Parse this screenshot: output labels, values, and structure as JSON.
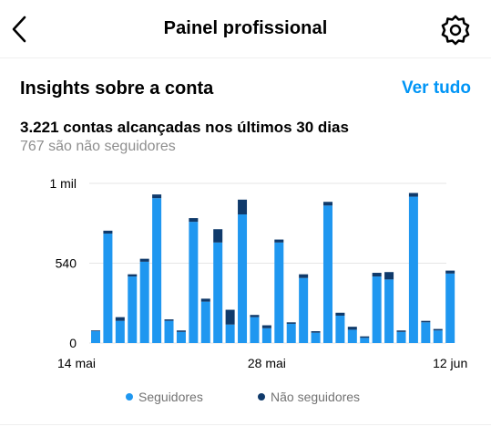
{
  "header": {
    "title": "Painel profissional",
    "back_icon": "chevron-left-icon",
    "settings_icon": "gear-icon"
  },
  "insights": {
    "title": "Insights sobre a conta",
    "see_all": "Ver tudo",
    "reach_text": "3.221 contas alcançadas nos últimos 30 dias",
    "non_followers_text": "767 são não seguidores"
  },
  "chart_data": {
    "type": "bar",
    "stacked": true,
    "y_ticks": [
      {
        "value": 0,
        "label": "0"
      },
      {
        "value": 540,
        "label": "540"
      },
      {
        "value": 1080,
        "label": "1 mil"
      }
    ],
    "ylim": [
      0,
      1080
    ],
    "x_ticks": [
      {
        "index": 0,
        "label": "14 mai"
      },
      {
        "index": 14,
        "label": "28 mai"
      },
      {
        "index": 29,
        "label": "12 jun"
      }
    ],
    "grid": true,
    "colors": {
      "followers": "#1f97f0",
      "non_followers": "#0f3a6b"
    },
    "series": [
      {
        "name": "Seguidores",
        "values": [
          80,
          740,
          150,
          450,
          550,
          980,
          150,
          75,
          820,
          280,
          680,
          125,
          870,
          175,
          100,
          680,
          130,
          440,
          70,
          930,
          185,
          90,
          35,
          450,
          430,
          75,
          990,
          140,
          85,
          470
        ]
      },
      {
        "name": "Não seguidores",
        "values": [
          5,
          20,
          25,
          15,
          20,
          25,
          10,
          10,
          25,
          20,
          90,
          100,
          100,
          15,
          20,
          20,
          10,
          25,
          10,
          25,
          20,
          20,
          10,
          25,
          50,
          10,
          25,
          10,
          10,
          20
        ]
      }
    ]
  },
  "legend": {
    "followers_label": "Seguidores",
    "non_followers_label": "Não seguidores"
  }
}
